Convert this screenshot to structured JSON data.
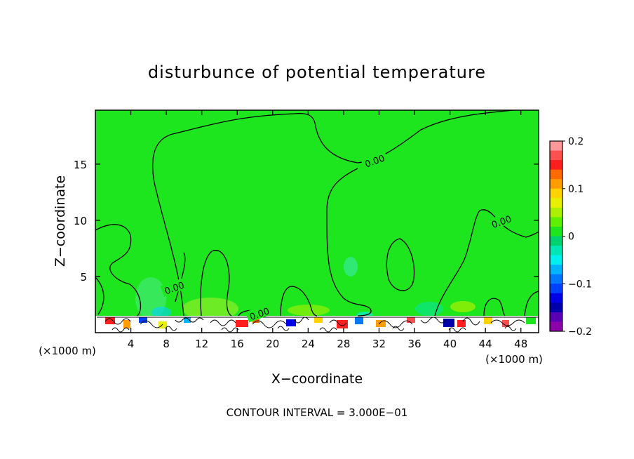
{
  "chart_data": {
    "type": "heatmap",
    "title": "disturbunce of potential temperature",
    "xlabel": "X−coordinate",
    "ylabel": "Z−coordinate",
    "x_unit_left": "(×1000 m)",
    "x_unit_right": "(×1000 m)",
    "xlim": [
      0,
      50
    ],
    "ylim": [
      0,
      19.8
    ],
    "x_ticks": [
      4,
      8,
      12,
      16,
      20,
      24,
      28,
      32,
      36,
      40,
      44,
      48
    ],
    "y_ticks": [
      5,
      10,
      15
    ],
    "contour_interval_text": "CONTOUR INTERVAL = 3.000E−01",
    "contour_labels": [
      {
        "text": "0.00",
        "x": 31.5,
        "z": 15.3
      },
      {
        "text": "0.00",
        "x": 45.8,
        "z": 9.9
      },
      {
        "text": "0.00",
        "x": 8.9,
        "z": 4.0
      },
      {
        "text": "0.00",
        "x": 18.5,
        "z": 1.7
      }
    ],
    "colorbar": {
      "min": -0.2,
      "max": 0.2,
      "tick_labels": [
        "0.2",
        "0.1",
        "0",
        "−0.1",
        "−0.2"
      ],
      "tick_values": [
        0.2,
        0.1,
        0,
        -0.1,
        -0.2
      ],
      "colors": [
        "#ff9999",
        "#ff5050",
        "#ff1e1e",
        "#ff6a00",
        "#ff9c00",
        "#ffd200",
        "#e6f000",
        "#aaf000",
        "#5ff000",
        "#1ee61e",
        "#00d26e",
        "#00e6b4",
        "#00f0f0",
        "#00b4ff",
        "#0078ff",
        "#0040ff",
        "#0000e6",
        "#0000aa",
        "#5a00b4",
        "#8c00aa"
      ]
    },
    "background_level": "~0 (green)",
    "near_surface_layer_top_z": 1.8
  }
}
